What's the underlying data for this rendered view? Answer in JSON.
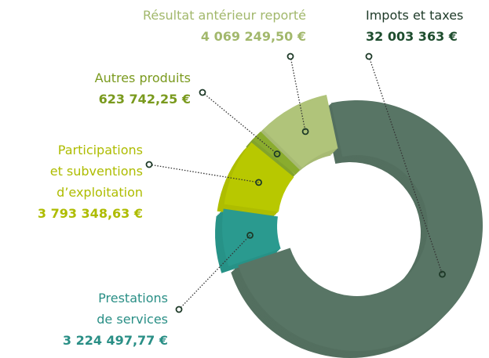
{
  "chart_data": {
    "type": "donut",
    "categories": [
      "Impots et taxes",
      "Prestations\nde services",
      "Participations\net subventions\nd’exploitation",
      "Autres produits",
      "Résultat antérieur reporté"
    ],
    "values": [
      32003363,
      3224497.77,
      3793348.63,
      623742.25,
      4069249.5
    ],
    "value_labels": [
      "32 003 363 €",
      "3 224 497,77 €",
      "3 793 348,63 €",
      "623 742,25 €",
      "4 069 249,50 €"
    ],
    "colors": [
      "#587565",
      "#2a9a8f",
      "#b8c800",
      "#8aac2e",
      "#b0c47a"
    ],
    "label_colors": [
      "#1e4d2e",
      "#2a8f86",
      "#aebc00",
      "#7a9a1e",
      "#a2b86c"
    ]
  }
}
